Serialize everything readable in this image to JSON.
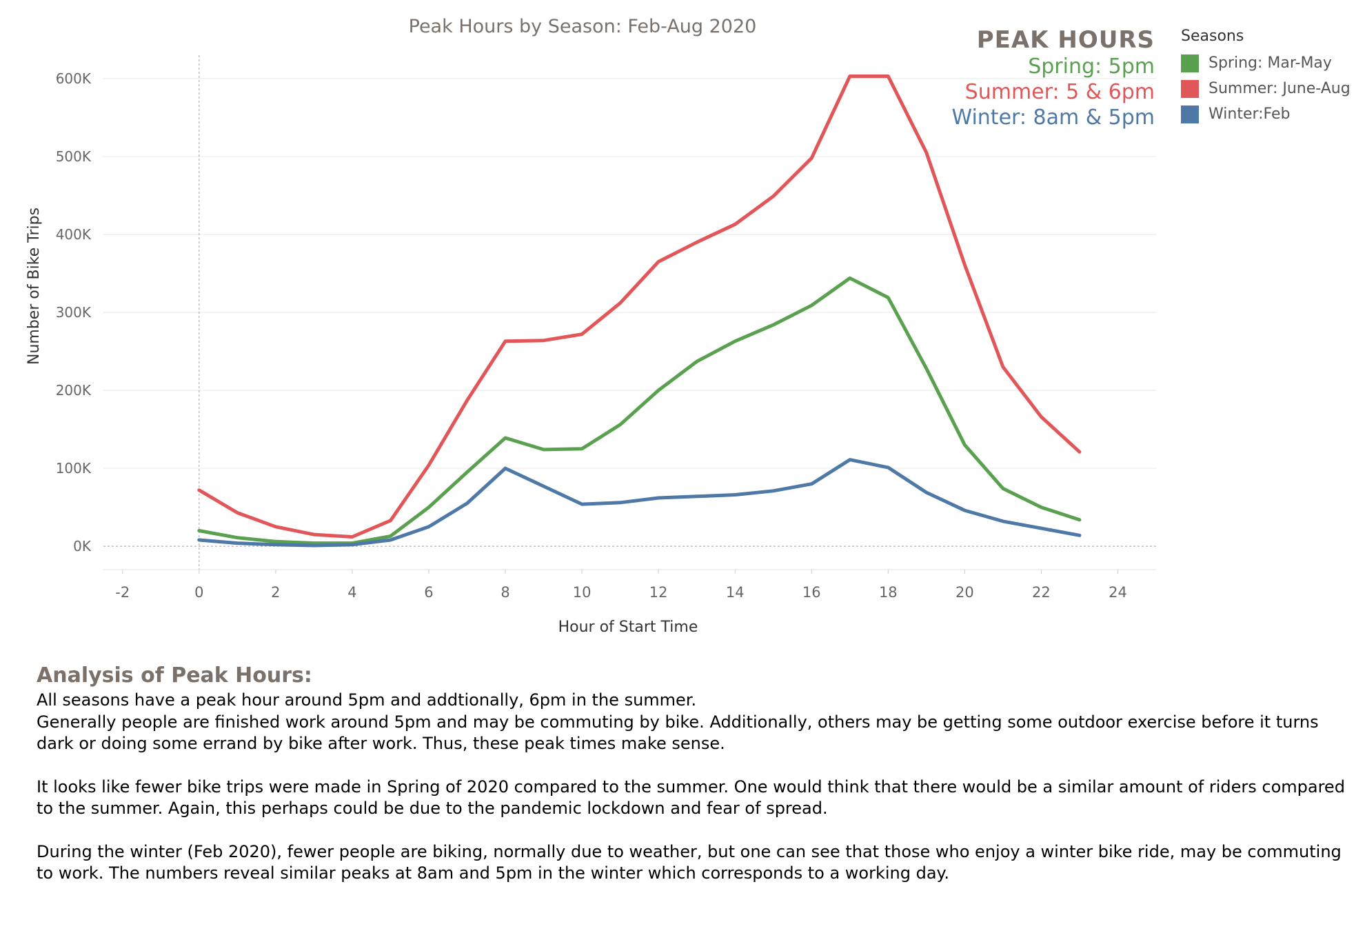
{
  "chart_data": {
    "type": "line",
    "title": "Peak Hours by Season: Feb-Aug 2020",
    "xlabel": "Hour of Start Time",
    "ylabel": "Number of Bike Trips",
    "xlim": [
      -2.5,
      25
    ],
    "ylim": [
      -30000,
      630000
    ],
    "x_ticks": [
      -2,
      0,
      2,
      4,
      6,
      8,
      10,
      12,
      14,
      16,
      18,
      20,
      22,
      24
    ],
    "y_ticks": [
      0,
      100000,
      200000,
      300000,
      400000,
      500000,
      600000
    ],
    "y_tick_labels": [
      "0K",
      "100K",
      "200K",
      "300K",
      "400K",
      "500K",
      "600K"
    ],
    "x": [
      0,
      1,
      2,
      3,
      4,
      5,
      6,
      7,
      8,
      9,
      10,
      11,
      12,
      13,
      14,
      15,
      16,
      17,
      18,
      19,
      20,
      21,
      22,
      23
    ],
    "series": [
      {
        "name": "Spring: Mar-May",
        "color": "#59a14f",
        "values": [
          20000,
          11000,
          6000,
          4000,
          4000,
          13000,
          50000,
          95000,
          139000,
          124000,
          125000,
          156000,
          200000,
          237000,
          263000,
          284000,
          309000,
          344000,
          319000,
          228000,
          130000,
          74000,
          50000,
          34000
        ]
      },
      {
        "name": "Summer: June-Aug",
        "color": "#e15759",
        "values": [
          72000,
          43000,
          25000,
          15000,
          12000,
          33000,
          104000,
          187000,
          263000,
          264000,
          272000,
          312000,
          365000,
          390000,
          413000,
          449000,
          498000,
          603000,
          603000,
          505000,
          361000,
          230000,
          166000,
          121000
        ]
      },
      {
        "name": "Winter:Feb",
        "color": "#4e79a7",
        "values": [
          8000,
          4000,
          2000,
          1000,
          2000,
          8000,
          25000,
          55000,
          100000,
          77000,
          54000,
          56000,
          62000,
          64000,
          66000,
          71000,
          80000,
          111000,
          101000,
          69000,
          46000,
          32000,
          23000,
          14000
        ]
      }
    ],
    "grid": true,
    "legend": "top-right"
  },
  "peak": {
    "heading": "PEAK HOURS",
    "spring": "Spring: 5pm",
    "summer": "Summer: 5 & 6pm",
    "winter": "Winter: 8am & 5pm"
  },
  "legend": {
    "title": "Seasons",
    "items": [
      {
        "label": "Spring: Mar-May",
        "color": "#59a14f"
      },
      {
        "label": "Summer: June-Aug",
        "color": "#e15759"
      },
      {
        "label": "Winter:Feb",
        "color": "#4e79a7"
      }
    ]
  },
  "analysis": {
    "title": "Analysis of Peak Hours:",
    "p1": "All seasons have a peak hour around 5pm and addtionally, 6pm in the summer.\nGenerally people are finished work around 5pm and may be commuting by bike. Additionally, others may be getting some outdoor exercise before it turns dark or doing some errand by bike after work. Thus, these peak times make sense.",
    "p2": "It looks like fewer bike trips were made in Spring of 2020 compared to the summer. One would think that there would be a similar amount of riders compared to the summer. Again, this perhaps could be due to the pandemic lockdown and fear of spread.",
    "p3": "During the winter (Feb 2020), fewer people are biking, normally due to weather, but one can see that those who enjoy a winter bike ride, may be commuting to work. The numbers reveal similar peaks at 8am and 5pm in the winter which corresponds to a working day."
  }
}
